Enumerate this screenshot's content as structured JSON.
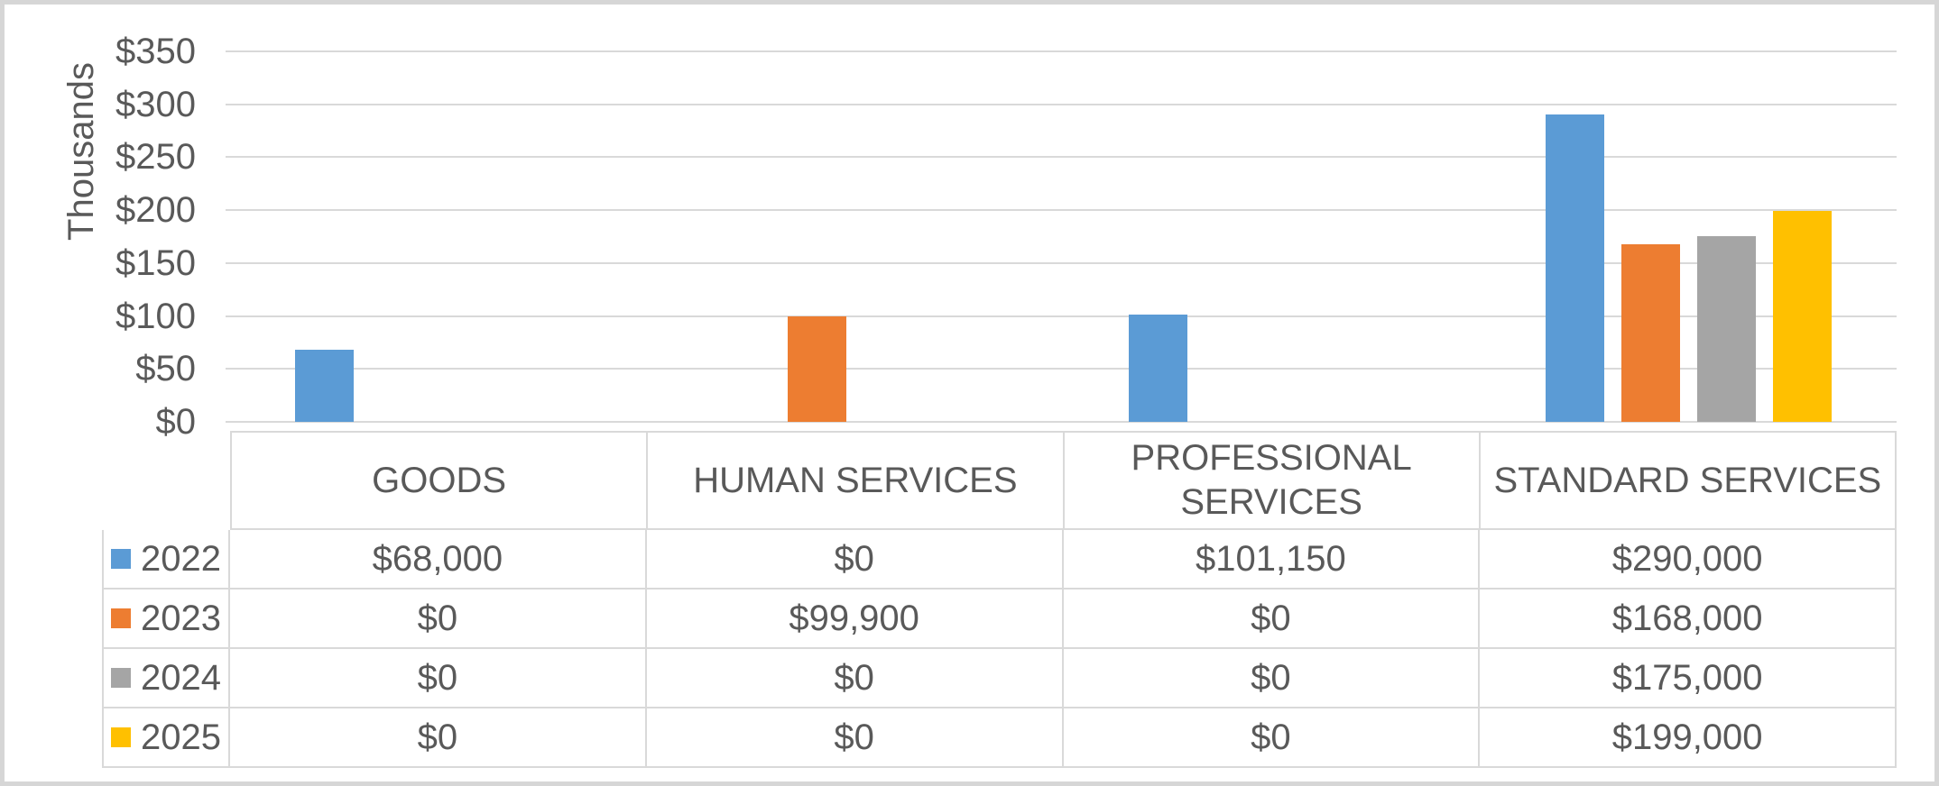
{
  "chart_data": {
    "type": "bar",
    "title": "",
    "ylabel": "Thousands",
    "categories": [
      "GOODS",
      "HUMAN SERVICES",
      "PROFESSIONAL SERVICES",
      "STANDARD SERVICES"
    ],
    "series": [
      {
        "name": "2022",
        "color": "#5B9BD5",
        "values": [
          68000,
          0,
          101150,
          290000
        ],
        "display_values": [
          "$68,000",
          "$0",
          "$101,150",
          "$290,000"
        ]
      },
      {
        "name": "2023",
        "color": "#ED7D31",
        "values": [
          0,
          99900,
          0,
          168000
        ],
        "display_values": [
          "$0",
          "$99,900",
          "$0",
          "$168,000"
        ]
      },
      {
        "name": "2024",
        "color": "#A5A5A5",
        "values": [
          0,
          0,
          0,
          175000
        ],
        "display_values": [
          "$0",
          "$0",
          "$0",
          "$175,000"
        ]
      },
      {
        "name": "2025",
        "color": "#FFC000",
        "values": [
          0,
          0,
          0,
          199000
        ],
        "display_values": [
          "$0",
          "$0",
          "$0",
          "$199,000"
        ]
      }
    ],
    "ylim": [
      0,
      350000
    ],
    "ytick_values": [
      0,
      50000,
      100000,
      150000,
      200000,
      250000,
      300000,
      350000
    ],
    "ytick_labels": [
      "$0",
      "$50",
      "$100",
      "$150",
      "$200",
      "$250",
      "$300",
      "$350"
    ],
    "grid": true,
    "legend_position": "data-table-left"
  }
}
